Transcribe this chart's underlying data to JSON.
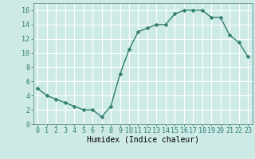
{
  "x": [
    0,
    1,
    2,
    3,
    4,
    5,
    6,
    7,
    8,
    9,
    10,
    11,
    12,
    13,
    14,
    15,
    16,
    17,
    18,
    19,
    20,
    21,
    22,
    23
  ],
  "y": [
    5,
    4,
    3.5,
    3,
    2.5,
    2,
    2,
    1,
    2.5,
    7,
    10.5,
    13,
    13.5,
    14,
    14,
    15.5,
    16,
    16,
    16,
    15,
    15,
    12.5,
    11.5,
    9.5
  ],
  "line_color": "#2e7d6e",
  "marker_color": "#2e7d6e",
  "bg_color": "#ceeae7",
  "grid_color": "#ffffff",
  "xlabel": "Humidex (Indice chaleur)",
  "xlabel_fontsize": 7,
  "xlim": [
    -0.5,
    23.5
  ],
  "ylim": [
    0,
    17
  ],
  "yticks": [
    0,
    2,
    4,
    6,
    8,
    10,
    12,
    14,
    16
  ],
  "xticks": [
    0,
    1,
    2,
    3,
    4,
    5,
    6,
    7,
    8,
    9,
    10,
    11,
    12,
    13,
    14,
    15,
    16,
    17,
    18,
    19,
    20,
    21,
    22,
    23
  ],
  "tick_fontsize": 6,
  "marker_size": 2.5,
  "line_width": 1.0
}
